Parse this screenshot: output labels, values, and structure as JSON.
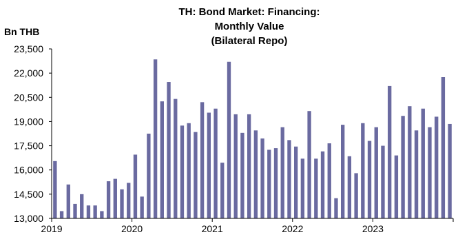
{
  "chart_data": {
    "type": "bar",
    "title_lines": [
      "TH: Bond Market: Financing:",
      "Monthly Value",
      "(Bilateral Repo)"
    ],
    "ylabel": "Bn THB",
    "xlabel": "",
    "ylim": [
      13000,
      23500
    ],
    "y_ticks": [
      "13,000",
      "14,500",
      "16,000",
      "17,500",
      "19,000",
      "20,500",
      "22,000",
      "23,500"
    ],
    "y_tick_values": [
      13000,
      14500,
      16000,
      17500,
      19000,
      20500,
      22000,
      23500
    ],
    "x_ticks": [
      "2019",
      "2020",
      "2021",
      "2022",
      "2023"
    ],
    "grid": false,
    "bar_color": "#6a6aa0",
    "categories": [
      "2019-01",
      "2019-02",
      "2019-03",
      "2019-04",
      "2019-05",
      "2019-06",
      "2019-07",
      "2019-08",
      "2019-09",
      "2019-10",
      "2019-11",
      "2019-12",
      "2020-01",
      "2020-02",
      "2020-03",
      "2020-04",
      "2020-05",
      "2020-06",
      "2020-07",
      "2020-08",
      "2020-09",
      "2020-10",
      "2020-11",
      "2020-12",
      "2021-01",
      "2021-02",
      "2021-03",
      "2021-04",
      "2021-05",
      "2021-06",
      "2021-07",
      "2021-08",
      "2021-09",
      "2021-10",
      "2021-11",
      "2021-12",
      "2022-01",
      "2022-02",
      "2022-03",
      "2022-04",
      "2022-05",
      "2022-06",
      "2022-07",
      "2022-08",
      "2022-09",
      "2022-10",
      "2022-11",
      "2022-12",
      "2023-01",
      "2023-02",
      "2023-03",
      "2023-04",
      "2023-05",
      "2023-06",
      "2023-07",
      "2023-08",
      "2023-09",
      "2023-10",
      "2023-11",
      "2023-12"
    ],
    "values": [
      16550,
      13450,
      15100,
      13900,
      14500,
      13800,
      13800,
      13450,
      15300,
      15450,
      14800,
      15200,
      16950,
      14350,
      18250,
      22850,
      20250,
      21450,
      20400,
      18750,
      18900,
      18350,
      20200,
      19550,
      19800,
      16450,
      22700,
      19450,
      18300,
      19450,
      18450,
      17950,
      17250,
      17350,
      18650,
      17850,
      17450,
      16700,
      19650,
      16700,
      17150,
      17650,
      14250,
      18800,
      16850,
      15800,
      18900,
      17800,
      18650,
      17500,
      21200,
      16900,
      19350,
      19950,
      18450,
      19800,
      18650,
      19300,
      21750,
      18850
    ]
  }
}
